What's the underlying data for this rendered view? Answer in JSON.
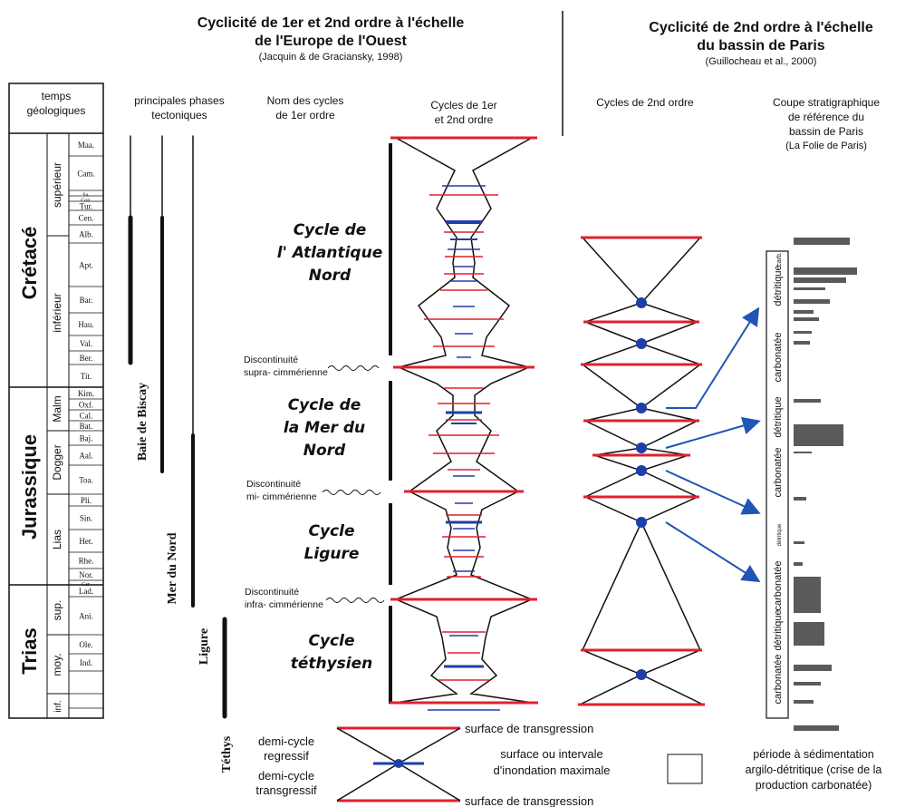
{
  "left_header": {
    "title_line1": "Cyclicité de 1er et 2nd ordre à l'échelle",
    "title_line2": "de l'Europe de l'Ouest",
    "reference": "(Jacquin & de Graciansky, 1998)"
  },
  "right_header": {
    "title_line1": "Cyclicité de 2nd ordre à l'échelle",
    "title_line2": "du bassin de Paris",
    "reference": "(Guillocheau et al., 2000)"
  },
  "columns": {
    "time_line1": "temps",
    "time_line2": "géologiques",
    "tectonic_line1": "principales phases",
    "tectonic_line2": "tectoniques",
    "names_line1": "Nom des cycles",
    "names_line2": "de 1er ordre",
    "cycles12_line1": "Cycles de 1er",
    "cycles12_line2": "et 2nd ordre",
    "cycles2": "Cycles de 2nd ordre",
    "section_line1": "Coupe stratigraphique",
    "section_line2": "de référence du",
    "section_line3": "bassin de Paris",
    "section_line4": "(La Folie de Paris)"
  },
  "systems": [
    "Crétacé",
    "Jurassique",
    "Trias"
  ],
  "series": [
    "supérieur",
    "inférieur",
    "Malm",
    "Dogger",
    "Lias",
    "sup.",
    "moy.",
    "inf."
  ],
  "stages": [
    "Maa.",
    "Cam.",
    "Sa.",
    "Con.",
    "Tur.",
    "Cen.",
    "Alb.",
    "Apt.",
    "Bar.",
    "Hau.",
    "Val.",
    "Ber.",
    "Tit.",
    "Kim.",
    "Oxf.",
    "Cal.",
    "Bat.",
    "Baj.",
    "Aal.",
    "Toa.",
    "Pli.",
    "Sin.",
    "Het.",
    "Rhe.",
    "Nor.",
    "Car.",
    "Lad.",
    "Ani.",
    "Ole.",
    "Ind."
  ],
  "tectonic_phases": [
    "Baie de Biscay",
    "Mer du Nord",
    "Ligure",
    "Téthys"
  ],
  "first_order_cycles": [
    {
      "line1": "Cycle de",
      "line2": "l' Atlantique",
      "line3": "Nord"
    },
    {
      "line1": "Cycle de",
      "line2": "la Mer du",
      "line3": "Nord"
    },
    {
      "line1": "Cycle",
      "line2": "Ligure",
      "line3": ""
    },
    {
      "line1": "Cycle",
      "line2": "téthysien",
      "line3": ""
    }
  ],
  "discontinuities": [
    {
      "line1": "Discontinuité",
      "line2": "supra- cimmérienne"
    },
    {
      "line1": "Discontinuité",
      "line2": "mi- cimmérienne"
    },
    {
      "line1": "Discontinuité",
      "line2": "infra- cimmérienne"
    }
  ],
  "section_labels": [
    "carb.",
    "détritique",
    "carbonatée",
    "détritique",
    "carbonatée",
    "détritique",
    "carbonatée",
    "détritique",
    "carbonatée"
  ],
  "legend": {
    "regressive_line1": "demi-cycle",
    "regressive_line2": "regressif",
    "transgressive_line1": "demi-cycle",
    "transgressive_line2": "transgressif",
    "top_surface": "surface de transgression",
    "mfs_line1": "surface ou intervale",
    "mfs_line2": "d'inondation maximale",
    "bottom_surface": "surface de transgression",
    "box_line1": "période à sédimentation",
    "box_line2": "argilo-détritique (crise de la",
    "box_line3": "production carbonatée)"
  },
  "colors": {
    "surface_red": "#e0202e",
    "mfs_blue": "#1f3fa8",
    "arrow_blue": "#1f55b5",
    "column_black": "#111111"
  }
}
